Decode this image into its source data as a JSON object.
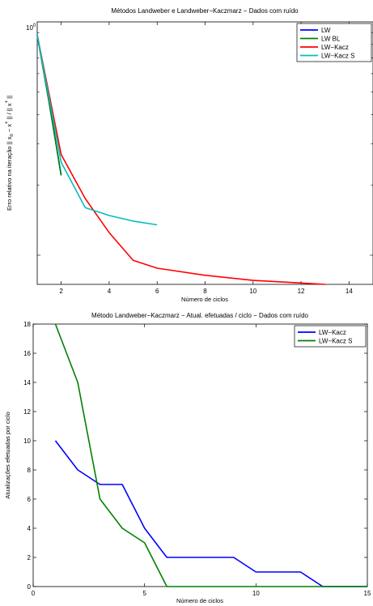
{
  "chart_data": [
    {
      "type": "line",
      "title": "Métodos Landweber e Landweber−Kaczmarz − Dados com ruído",
      "xlabel": "Número de ciclos",
      "ylabel": "Erro relativo na iteração   || x_n − x^+ || / || x^+ ||",
      "xlim": [
        1,
        15
      ],
      "ylim": [
        0.075,
        1.0
      ],
      "yscale": "log",
      "xticks": [
        2,
        4,
        6,
        8,
        10,
        12,
        14
      ],
      "ytick_label": "10^0",
      "grid": false,
      "legend_position": "top-right",
      "series": [
        {
          "name": "LW",
          "color": "#0000ff",
          "x": [
            1,
            1.5,
            2
          ],
          "y": [
            0.88,
            0.45,
            0.22
          ]
        },
        {
          "name": "LW BL",
          "color": "#008000",
          "x": [
            1,
            1.5,
            2
          ],
          "y": [
            0.88,
            0.45,
            0.22
          ]
        },
        {
          "name": "LW−Kacz",
          "color": "#ff0000",
          "x": [
            1,
            2,
            3,
            4,
            5,
            6,
            8,
            10,
            12,
            13
          ],
          "y": [
            0.88,
            0.27,
            0.175,
            0.125,
            0.095,
            0.088,
            0.082,
            0.078,
            0.076,
            0.075
          ]
        },
        {
          "name": "LW−Kacz S",
          "color": "#00bfbf",
          "x": [
            1,
            2,
            3,
            4,
            5,
            6
          ],
          "y": [
            0.88,
            0.25,
            0.16,
            0.148,
            0.14,
            0.135
          ]
        }
      ]
    },
    {
      "type": "line",
      "title": "Método Landweber−Kaczmarz − Atual. efetuadas / ciclo − Dados com ruído",
      "xlabel": "Número de ciclos",
      "ylabel": "Atualizações efetuadas por ciclo",
      "xlim": [
        0,
        15
      ],
      "ylim": [
        0,
        18
      ],
      "xticks": [
        0,
        5,
        10,
        15
      ],
      "yticks": [
        0,
        2,
        4,
        6,
        8,
        10,
        12,
        14,
        16,
        18
      ],
      "grid": false,
      "legend_position": "top-right",
      "series": [
        {
          "name": "LW−Kacz",
          "color": "#0000ff",
          "x": [
            1,
            2,
            3,
            4,
            5,
            6,
            7,
            8,
            9,
            10,
            11,
            12,
            13,
            14,
            15
          ],
          "y": [
            10,
            8,
            7,
            7,
            4,
            2,
            2,
            2,
            2,
            1,
            1,
            1,
            0,
            0,
            0
          ]
        },
        {
          "name": "LW−Kacz S",
          "color": "#008000",
          "x": [
            1,
            2,
            3,
            4,
            5,
            6,
            7,
            8,
            9,
            10,
            11,
            12,
            13,
            14,
            15
          ],
          "y": [
            18,
            14,
            6,
            4,
            3,
            0,
            0,
            0,
            0,
            0,
            0,
            0,
            0,
            0,
            0
          ]
        }
      ]
    }
  ]
}
